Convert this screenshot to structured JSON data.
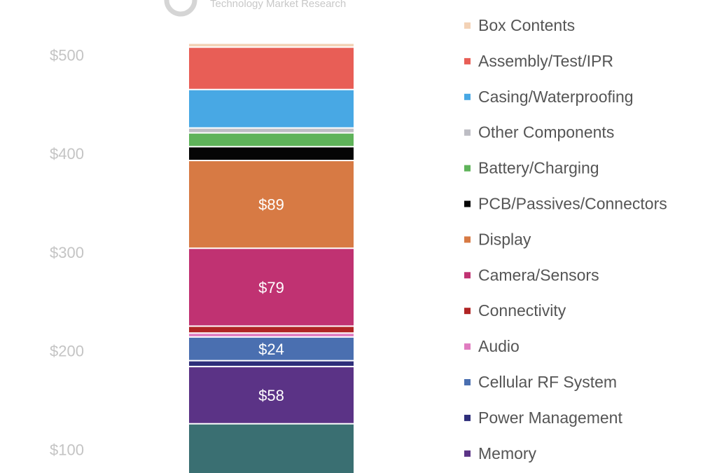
{
  "brand": {
    "tagline": "Technology Market Research"
  },
  "chart_data": {
    "type": "bar",
    "stacked": true,
    "yticks": [
      "$100",
      "$200",
      "$300",
      "$400",
      "$500"
    ],
    "ytick_values": [
      100,
      200,
      300,
      400,
      500
    ],
    "ylim": [
      0,
      520
    ],
    "grid": false,
    "legend_position": "right",
    "series": [
      {
        "name": "",
        "value": 126,
        "color": "#3a6f72",
        "label": ""
      },
      {
        "name": "Memory",
        "value": 58,
        "color": "#5b3386",
        "label": "$58"
      },
      {
        "name": "Power Management",
        "value": 6,
        "color": "#2e2e7a",
        "label": ""
      },
      {
        "name": "Cellular RF System",
        "value": 24,
        "color": "#4a6fb0",
        "label": "$24"
      },
      {
        "name": "Audio",
        "value": 4,
        "color": "#e07cc0",
        "label": ""
      },
      {
        "name": "Connectivity",
        "value": 7,
        "color": "#b02424",
        "label": ""
      },
      {
        "name": "Camera/Sensors",
        "value": 79,
        "color": "#c03272",
        "label": "$79"
      },
      {
        "name": "Display",
        "value": 89,
        "color": "#d77a44",
        "label": "$89"
      },
      {
        "name": "PCB/Passives/Connectors",
        "value": 14,
        "color": "#050505",
        "label": ""
      },
      {
        "name": "Battery/Charging",
        "value": 14,
        "color": "#5fb35a",
        "label": ""
      },
      {
        "name": "Other Components",
        "value": 5,
        "color": "#bdbdc4",
        "label": ""
      },
      {
        "name": "Casing/Waterproofing",
        "value": 39,
        "color": "#48a8e4",
        "label": ""
      },
      {
        "name": "Assembly/Test/IPR",
        "value": 43,
        "color": "#e85e56",
        "label": ""
      },
      {
        "name": "Box Contents",
        "value": 4,
        "color": "#f3d2b6",
        "label": ""
      }
    ]
  }
}
